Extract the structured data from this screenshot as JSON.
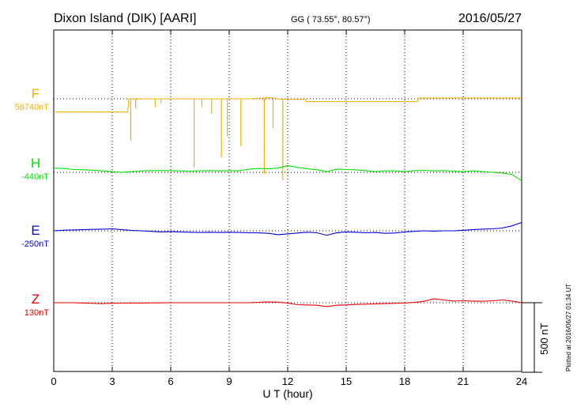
{
  "header": {
    "station": "Dixon Island (DIK)  [AARI]",
    "coords": "GG ( 73.55°,  80.57°)",
    "date": "2016/05/27"
  },
  "footer": {
    "plotted": "Plotted at 2016/06/27 01:34 UT",
    "scale": "500 nT"
  },
  "chart_data": {
    "type": "line",
    "title": "Dixon Island (DIK)  [AARI]",
    "xlabel": "U T (hour)",
    "xlim": [
      0,
      24
    ],
    "xticks": [
      "0",
      "3",
      "6",
      "9",
      "12",
      "15",
      "18",
      "21",
      "24"
    ],
    "scale_bar_nT": 500,
    "grid": true,
    "colors": {
      "F": "#f5b000",
      "H": "#00e000",
      "E": "#0000dd",
      "Z": "#ee0000"
    },
    "series": [
      {
        "name": "F",
        "baseline": "58740nT",
        "baseline_nT": 58740,
        "points": [
          [
            0,
            -95
          ],
          [
            3.8,
            -95
          ],
          [
            3.85,
            0
          ],
          [
            4.2,
            -2
          ],
          [
            4.6,
            0
          ],
          [
            5,
            0
          ],
          [
            5.5,
            0
          ],
          [
            6,
            0
          ],
          [
            6.5,
            0
          ],
          [
            7,
            0
          ],
          [
            7.3,
            0
          ],
          [
            8,
            0
          ],
          [
            8.5,
            0
          ],
          [
            9,
            0
          ],
          [
            9.5,
            0
          ],
          [
            10,
            0
          ],
          [
            10.5,
            2
          ],
          [
            11,
            8
          ],
          [
            11.3,
            6
          ],
          [
            11.6,
            -3
          ],
          [
            12,
            -2
          ],
          [
            12.3,
            -3
          ],
          [
            12.9,
            -3
          ],
          [
            12.95,
            -20
          ],
          [
            14,
            -20
          ],
          [
            15,
            -20
          ],
          [
            16,
            -20
          ],
          [
            17,
            -20
          ],
          [
            18,
            -20
          ],
          [
            18.65,
            -20
          ],
          [
            18.7,
            5
          ],
          [
            20,
            5
          ],
          [
            21,
            5
          ],
          [
            22,
            5
          ],
          [
            23,
            5
          ],
          [
            24,
            5
          ]
        ],
        "spikes": [
          [
            3.95,
            -300
          ],
          [
            4.2,
            -70
          ],
          [
            5.2,
            -60
          ],
          [
            5.5,
            -35
          ],
          [
            7.2,
            -495
          ],
          [
            7.6,
            -60
          ],
          [
            8.1,
            -110
          ],
          [
            8.6,
            -420
          ],
          [
            8.9,
            -270
          ],
          [
            9.6,
            -340
          ],
          [
            10.8,
            -540
          ],
          [
            11.25,
            -210
          ],
          [
            11.75,
            -585
          ]
        ]
      },
      {
        "name": "H",
        "baseline": "-440nT",
        "baseline_nT": -440,
        "points": [
          [
            0,
            30
          ],
          [
            0.5,
            28
          ],
          [
            1,
            20
          ],
          [
            1.5,
            18
          ],
          [
            2,
            15
          ],
          [
            2.5,
            10
          ],
          [
            3,
            5
          ],
          [
            3.5,
            0
          ],
          [
            4,
            5
          ],
          [
            4.5,
            10
          ],
          [
            5,
            12
          ],
          [
            5.5,
            13
          ],
          [
            6,
            12
          ],
          [
            6.5,
            10
          ],
          [
            7,
            8
          ],
          [
            7.5,
            10
          ],
          [
            8,
            12
          ],
          [
            8.5,
            10
          ],
          [
            9,
            12
          ],
          [
            9.5,
            10
          ],
          [
            10,
            22
          ],
          [
            10.5,
            28
          ],
          [
            11,
            25
          ],
          [
            11.5,
            30
          ],
          [
            12,
            48
          ],
          [
            12.5,
            35
          ],
          [
            13,
            25
          ],
          [
            13.5,
            18
          ],
          [
            14,
            5
          ],
          [
            14.5,
            22
          ],
          [
            15,
            20
          ],
          [
            15.5,
            18
          ],
          [
            16,
            12
          ],
          [
            16.5,
            5
          ],
          [
            17,
            10
          ],
          [
            17.5,
            10
          ],
          [
            18,
            5
          ],
          [
            18.5,
            12
          ],
          [
            19,
            14
          ],
          [
            19.5,
            10
          ],
          [
            20,
            12
          ],
          [
            20.5,
            8
          ],
          [
            21,
            5
          ],
          [
            21.5,
            10
          ],
          [
            22,
            5
          ],
          [
            22.5,
            0
          ],
          [
            23,
            -5
          ],
          [
            23.5,
            -15
          ],
          [
            24,
            -60
          ]
        ]
      },
      {
        "name": "E",
        "baseline": "-250nT",
        "baseline_nT": -250,
        "points": [
          [
            0,
            0
          ],
          [
            0.5,
            4
          ],
          [
            1,
            6
          ],
          [
            1.5,
            8
          ],
          [
            2,
            10
          ],
          [
            2.5,
            12
          ],
          [
            3,
            14
          ],
          [
            3.5,
            8
          ],
          [
            4,
            2
          ],
          [
            4.5,
            0
          ],
          [
            5,
            -4
          ],
          [
            5.5,
            -8
          ],
          [
            6,
            -6
          ],
          [
            6.5,
            -8
          ],
          [
            7,
            -10
          ],
          [
            7.5,
            -12
          ],
          [
            8,
            -10
          ],
          [
            8.5,
            -12
          ],
          [
            9,
            -10
          ],
          [
            9.5,
            -12
          ],
          [
            10,
            -14
          ],
          [
            10.5,
            -15
          ],
          [
            11,
            -18
          ],
          [
            11.5,
            -28
          ],
          [
            12,
            -22
          ],
          [
            12.5,
            -16
          ],
          [
            13,
            -10
          ],
          [
            13.5,
            -14
          ],
          [
            14,
            -32
          ],
          [
            14.5,
            -15
          ],
          [
            15,
            -8
          ],
          [
            15.5,
            -10
          ],
          [
            16,
            -14
          ],
          [
            16.5,
            -12
          ],
          [
            17,
            -18
          ],
          [
            17.5,
            -16
          ],
          [
            18,
            -8
          ],
          [
            18.5,
            -4
          ],
          [
            19,
            0
          ],
          [
            19.5,
            -2
          ],
          [
            20,
            0
          ],
          [
            20.5,
            0
          ],
          [
            21,
            4
          ],
          [
            21.5,
            8
          ],
          [
            22,
            12
          ],
          [
            22.5,
            14
          ],
          [
            23,
            20
          ],
          [
            23.5,
            35
          ],
          [
            24,
            60
          ]
        ]
      },
      {
        "name": "Z",
        "baseline": "130nT",
        "baseline_nT": 130,
        "points": [
          [
            0,
            0
          ],
          [
            0.5,
            0
          ],
          [
            1,
            0
          ],
          [
            1.5,
            -2
          ],
          [
            2,
            -4
          ],
          [
            2.5,
            -6
          ],
          [
            3,
            -4
          ],
          [
            3.5,
            -3
          ],
          [
            4,
            -2
          ],
          [
            4.5,
            -2
          ],
          [
            5,
            -1
          ],
          [
            5.5,
            -1
          ],
          [
            6,
            0
          ],
          [
            6.5,
            0
          ],
          [
            7,
            0
          ],
          [
            7.5,
            0
          ],
          [
            8,
            0
          ],
          [
            8.5,
            0
          ],
          [
            9,
            0
          ],
          [
            9.5,
            0
          ],
          [
            10,
            0
          ],
          [
            10.5,
            2
          ],
          [
            11,
            6
          ],
          [
            11.5,
            4
          ],
          [
            12,
            -2
          ],
          [
            12.5,
            -14
          ],
          [
            13,
            -16
          ],
          [
            13.5,
            -18
          ],
          [
            14,
            -28
          ],
          [
            14.5,
            -18
          ],
          [
            15,
            -16
          ],
          [
            15.5,
            -12
          ],
          [
            16,
            -10
          ],
          [
            16.5,
            -8
          ],
          [
            17,
            -6
          ],
          [
            17.5,
            -4
          ],
          [
            18,
            -2
          ],
          [
            18.5,
            2
          ],
          [
            19,
            10
          ],
          [
            19.5,
            28
          ],
          [
            20,
            20
          ],
          [
            20.5,
            12
          ],
          [
            21,
            14
          ],
          [
            21.5,
            12
          ],
          [
            22,
            10
          ],
          [
            22.5,
            14
          ],
          [
            23,
            20
          ],
          [
            23.5,
            12
          ],
          [
            24,
            0
          ]
        ]
      }
    ]
  }
}
